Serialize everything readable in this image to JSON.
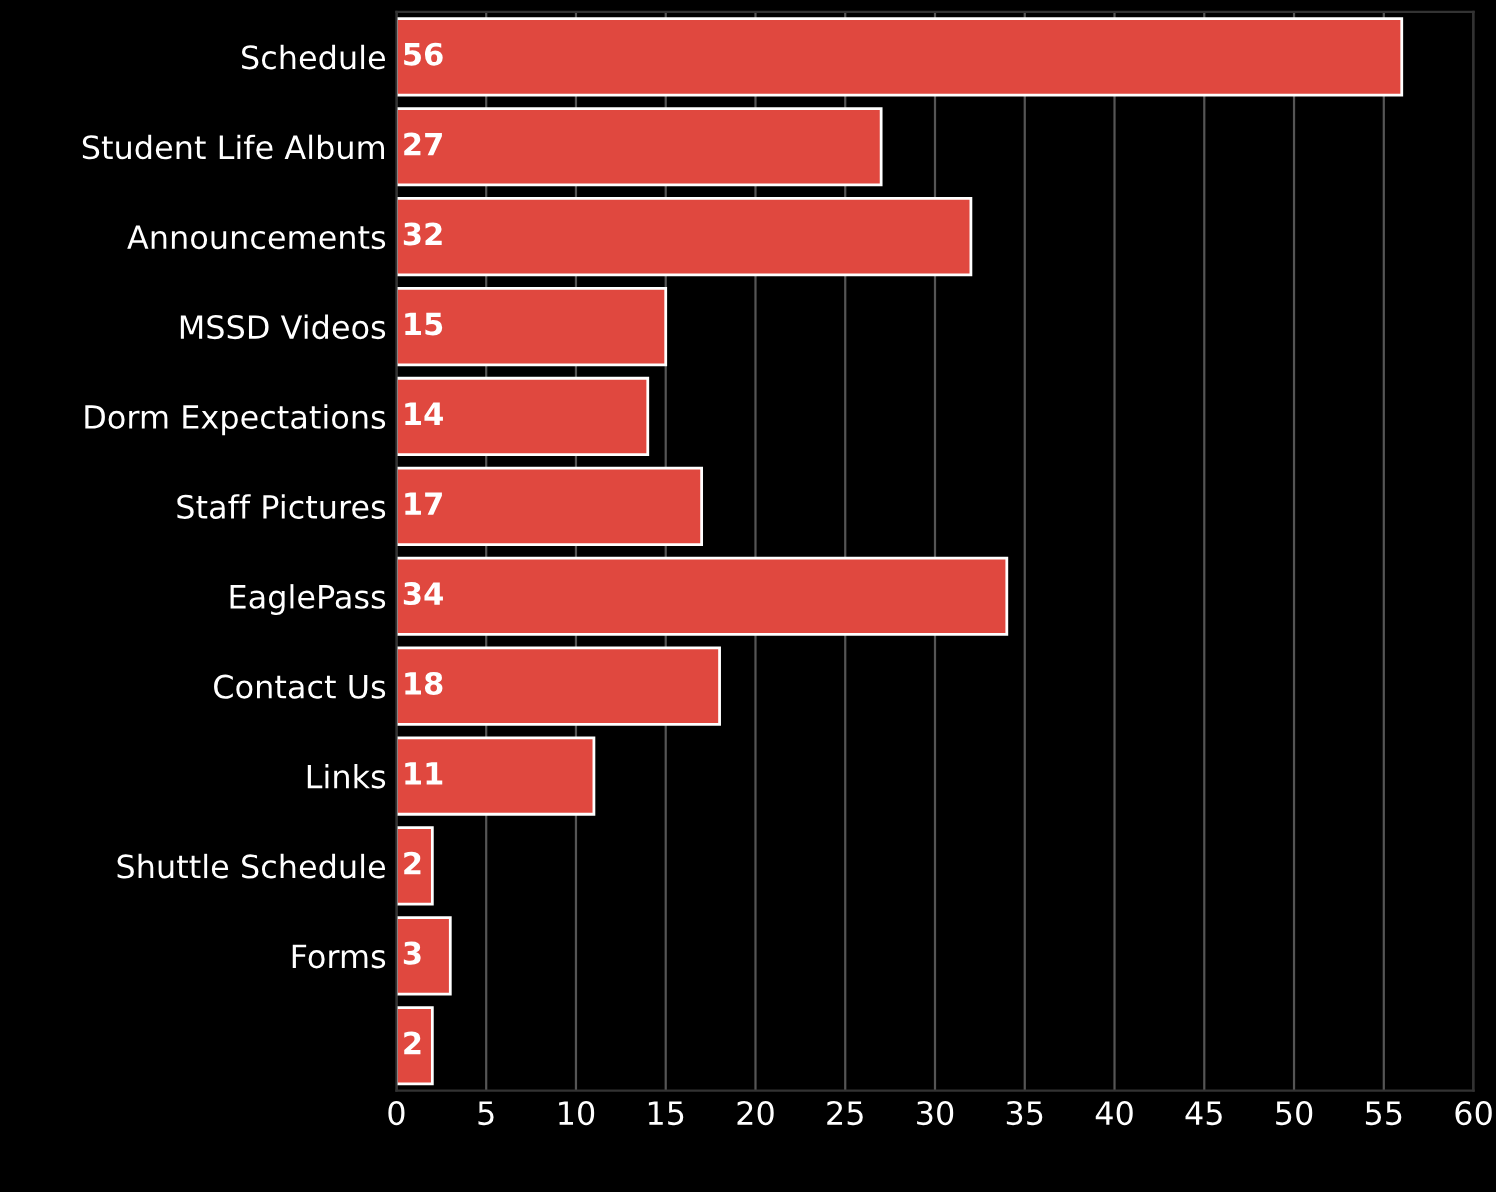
{
  "chart_data": {
    "type": "bar",
    "orientation": "horizontal",
    "categories": [
      "Schedule",
      "Student Life Album",
      "Announcements",
      "MSSD Videos",
      "Dorm Expectations",
      "Staff Pictures",
      "EaglePass",
      "Contact Us",
      "Links",
      "Shuttle Schedule",
      "Forms",
      null
    ],
    "values": [
      56,
      27,
      32,
      15,
      14,
      17,
      34,
      18,
      11,
      2,
      3,
      2
    ],
    "color": "#e0483f",
    "xlim": [
      0,
      60
    ],
    "xticks": [
      0,
      5,
      10,
      15,
      20,
      25,
      30,
      35,
      40,
      45,
      50,
      55,
      60
    ],
    "grid": "x",
    "data_labels": true
  }
}
